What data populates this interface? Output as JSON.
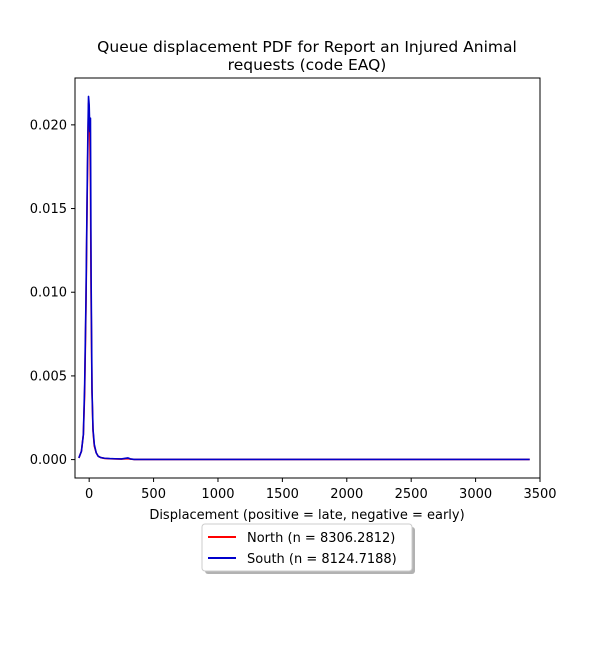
{
  "chart_data": {
    "type": "line",
    "title_line1": "Queue displacement PDF for Report an Injured Animal",
    "title_line2": "requests (code EAQ)",
    "xlabel": "Displacement (positive = late, negative = early)",
    "ylabel": "",
    "xlim": [
      -110,
      3500
    ],
    "ylim": [
      -0.0011,
      0.0228
    ],
    "xticks": [
      0,
      500,
      1000,
      1500,
      2000,
      2500,
      3000,
      3500
    ],
    "yticks": [
      0.0,
      0.005,
      0.01,
      0.015,
      0.02
    ],
    "ytick_labels": [
      "0.000",
      "0.005",
      "0.010",
      "0.015",
      "0.020"
    ],
    "grid": false,
    "legend_position": "below",
    "series": [
      {
        "name": "North (n = 8306.2812)",
        "color": "#ff0000",
        "x": [
          -80,
          -60,
          -45,
          -35,
          -25,
          -15,
          -5,
          0,
          5,
          10,
          15,
          22,
          30,
          40,
          55,
          70,
          90,
          120,
          160,
          200,
          250,
          300,
          320,
          350,
          500,
          1000,
          2000,
          3000,
          3420
        ],
        "y": [
          0.0001,
          0.0005,
          0.0015,
          0.004,
          0.009,
          0.016,
          0.0213,
          0.0205,
          0.0195,
          0.0165,
          0.0095,
          0.004,
          0.0017,
          0.0008,
          0.0004,
          0.0002,
          0.00012,
          7e-05,
          5e-05,
          4e-05,
          3e-05,
          5e-05,
          3e-05,
          1e-05,
          1e-05,
          1e-05,
          1e-05,
          1e-05,
          1e-05
        ]
      },
      {
        "name": "South (n = 8124.7188)",
        "color": "#0000cc",
        "x": [
          -80,
          -60,
          -45,
          -35,
          -25,
          -15,
          -10,
          -5,
          0,
          5,
          10,
          15,
          22,
          30,
          40,
          55,
          70,
          90,
          120,
          160,
          200,
          250,
          300,
          320,
          350,
          500,
          1000,
          2000,
          3000,
          3420
        ],
        "y": [
          0.0001,
          0.0005,
          0.0015,
          0.0045,
          0.0095,
          0.0165,
          0.0195,
          0.0217,
          0.0212,
          0.0196,
          0.0204,
          0.011,
          0.0042,
          0.0018,
          0.0009,
          0.0004,
          0.0002,
          0.00012,
          8e-05,
          6e-05,
          5e-05,
          4e-05,
          0.0001,
          4e-05,
          1e-05,
          1e-05,
          1e-05,
          1e-05,
          1e-05,
          1e-05
        ]
      }
    ]
  }
}
